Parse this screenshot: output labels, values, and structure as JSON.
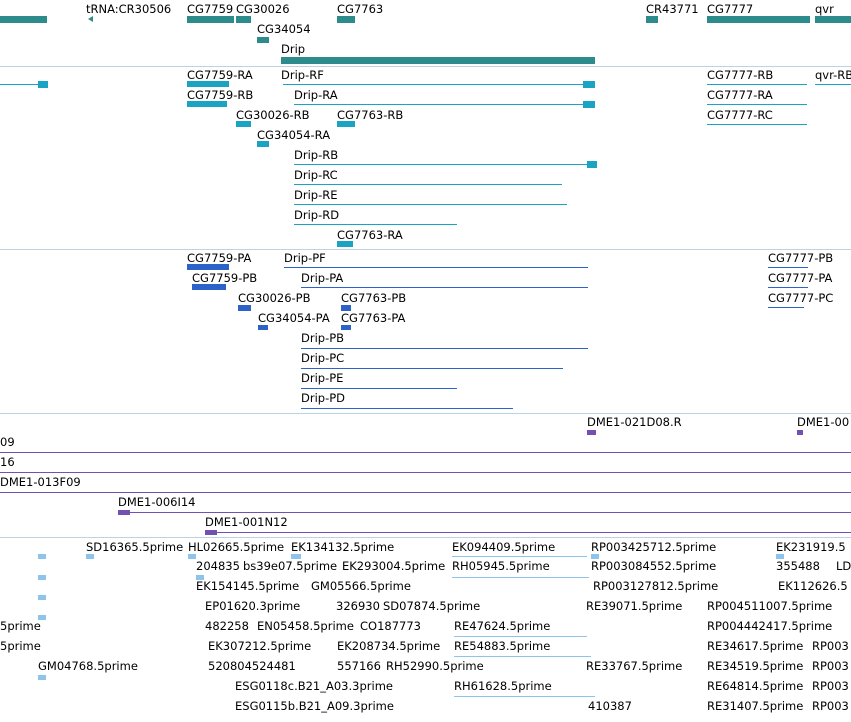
{
  "colors": {
    "gene": "#2e8b8b",
    "transcript": "#1aa3c2",
    "protein": "#2d62c9",
    "clone": "#7550b3",
    "est": "#8ec3ec",
    "separator": "#bcd3e6"
  },
  "tracks": {
    "genes": {
      "labels": [
        "tRNA:CR30506",
        "CG7759",
        "CG30026",
        "CG7763",
        "CR43771",
        "CG7777",
        "qvr",
        "CG34054",
        "Drip"
      ]
    },
    "transcripts": {
      "labels": [
        "CG7759-RA",
        "Drip-RF",
        "CG7777-RB",
        "qvr-RB",
        "CG7759-RB",
        "Drip-RA",
        "CG7777-RA",
        "CG30026-RB",
        "CG7763-RB",
        "CG7777-RC",
        "CG34054-RA",
        "Drip-RB",
        "Drip-RC",
        "Drip-RE",
        "Drip-RD",
        "CG7763-RA"
      ]
    },
    "proteins": {
      "labels": [
        "CG7759-PA",
        "Drip-PF",
        "CG7777-PB",
        "CG7759-PB",
        "Drip-PA",
        "CG7777-PA",
        "CG30026-PB",
        "CG7763-PB",
        "CG7777-PC",
        "CG34054-PA",
        "CG7763-PA",
        "Drip-PB",
        "Drip-PC",
        "Drip-PE",
        "Drip-PD"
      ]
    },
    "clones": {
      "labels": [
        "DME1-021D08.R",
        "DME1-00",
        "09",
        "16",
        "DME1-013F09",
        "DME1-006I14",
        "DME1-001N12"
      ]
    },
    "ests": {
      "labels": [
        "SD16365.5prime",
        "HL02665.5prime",
        "EK134132.5prime",
        "EK094409.5prime",
        "RP003425712.5prime",
        "EK231919.5",
        "204835",
        "bs39e07.5prime",
        "EK293004.5prime",
        "RH05945.5prime",
        "RP003084552.5prime",
        "355488",
        "LD",
        "EK154145.5prime",
        "GM05566.5prime",
        "RP003127812.5prime",
        "EK112626.5",
        "EP01620.3prime",
        "326930",
        "SD07874.5prime",
        "RE39071.5prime",
        "RP004511007.5prime",
        "5prime",
        "482258",
        "EN05458.5prime",
        "CO187773",
        "RE47624.5prime",
        "RP004442417.5prime",
        "5prime",
        "EK307212.5prime",
        "EK208734.5prime",
        "RE54883.5prime",
        "RE34617.5prime",
        "RP003",
        "GM04768.5prime",
        "520804524481",
        "557166",
        "RH52990.5prime",
        "RE33767.5prime",
        "RE34519.5prime",
        "RP003",
        "ESG0118c.B21_A03.3prime",
        "RH61628.5prime",
        "RE64814.5prime",
        "RP003",
        "ESG0115b.B21_A09.3prime",
        "410387",
        "RE31407.5prime",
        "RP003"
      ]
    }
  }
}
